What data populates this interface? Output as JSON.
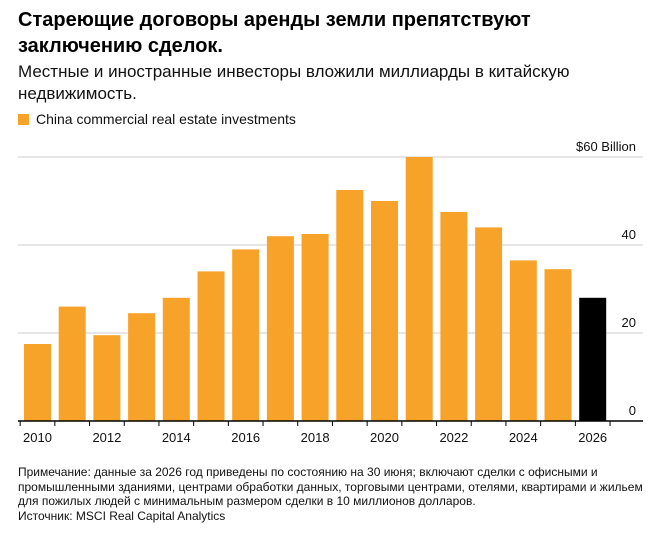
{
  "header": {
    "title": "Стареющие договоры аренды земли препятствуют заключению сделок.",
    "subtitle": "Местные и иностранные инвесторы вложили миллиарды в китайскую недвижимость."
  },
  "legend": {
    "label": "China commercial real estate investments",
    "color": "#f7a229"
  },
  "colors": {
    "bar": "#f7a229",
    "highlight": "#000000",
    "grid": "#cccccc",
    "axis": "#000000"
  },
  "chart_data": {
    "type": "bar",
    "x": [
      2010,
      2011,
      2012,
      2013,
      2014,
      2015,
      2016,
      2017,
      2018,
      2019,
      2020,
      2021,
      2022,
      2023,
      2024,
      2025,
      2026
    ],
    "values": [
      17.5,
      26,
      19.5,
      24.5,
      28,
      34,
      39,
      42,
      42.5,
      52.5,
      50,
      60,
      47.5,
      44,
      36.5,
      34.5,
      28
    ],
    "highlight_index": 16,
    "ylim": [
      0,
      60
    ],
    "yticks": [
      0,
      20,
      40,
      60
    ],
    "ytick_labels": [
      "0",
      "20",
      "40",
      "$60 Billion"
    ],
    "xticks": [
      2010,
      2012,
      2014,
      2016,
      2018,
      2020,
      2022,
      2024,
      2026
    ],
    "xtick_labels": [
      "2010",
      "2012",
      "2014",
      "2016",
      "2018",
      "2020",
      "2022",
      "2024",
      "2026"
    ],
    "legend_position": "top-left",
    "grid": true
  },
  "footer": {
    "note": "Примечание: данные за 2026 год приведены по состоянию на 30 июня; включают сделки с офисными и промышленными зданиями, центрами обработки данных, торговыми центрами, отелями, квартирами и жильем для пожилых людей с минимальным размером сделки в 10 миллионов долларов.",
    "source": "Источник: MSCI Real Capital Analytics"
  }
}
